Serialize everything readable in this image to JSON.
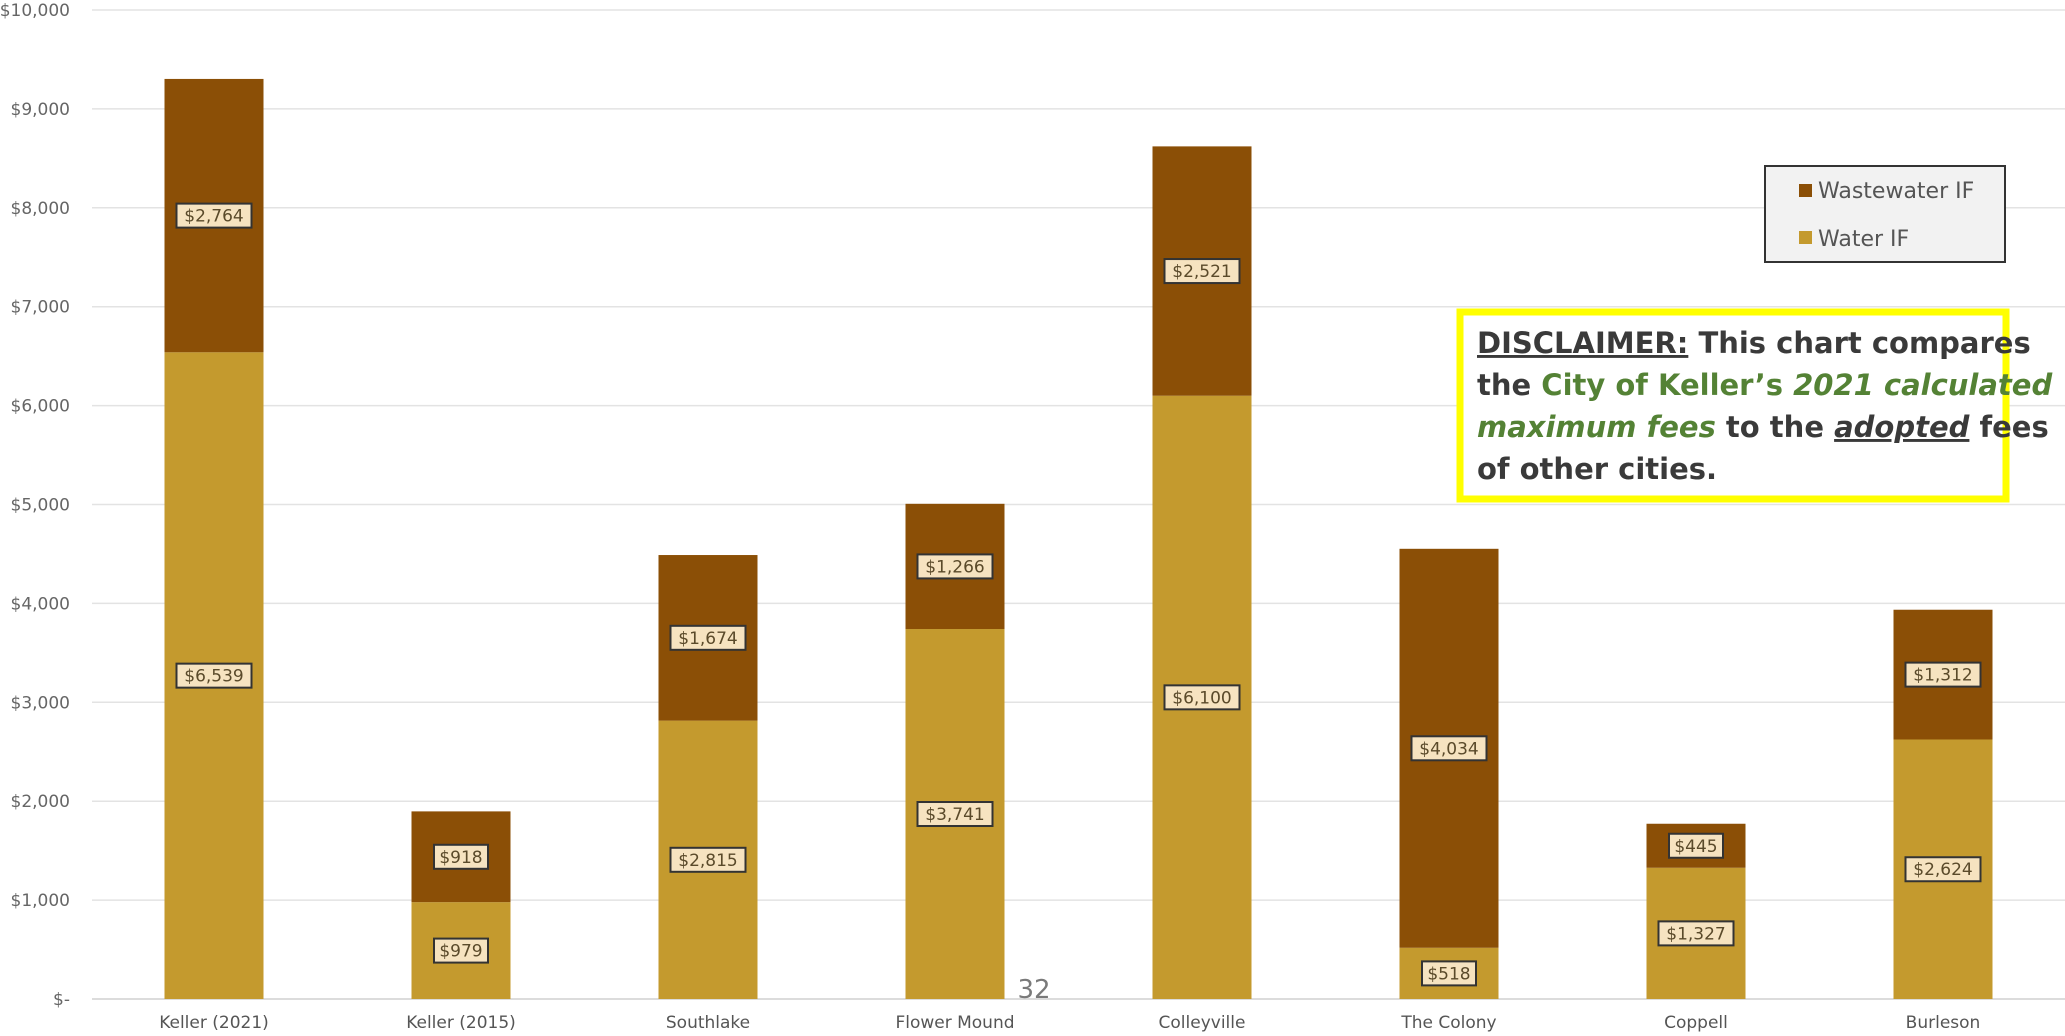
{
  "chart_data": {
    "type": "bar",
    "stacked": true,
    "categories": [
      "Keller (2021)",
      "Keller (2015)",
      "Southlake",
      "Flower Mound",
      "Colleyville",
      "The Colony",
      "Coppell",
      "Burleson"
    ],
    "series": [
      {
        "name": "Water IF",
        "color": "#c49a2e",
        "values": [
          6539,
          979,
          2815,
          3741,
          6100,
          518,
          1327,
          2624
        ],
        "labels": [
          "$6,539",
          "$979",
          "$2,815",
          "$3,741",
          "$6,100",
          "$518",
          "$1,327",
          "$2,624"
        ]
      },
      {
        "name": "Wastewater IF",
        "color": "#8b4f06",
        "values": [
          2764,
          918,
          1674,
          1266,
          2521,
          4034,
          445,
          1312
        ],
        "labels": [
          "$2,764",
          "$918",
          "$1,674",
          "$1,266",
          "$2,521",
          "$4,034",
          "$445",
          "$1,312"
        ]
      }
    ],
    "y_ticks": [
      0,
      1000,
      2000,
      3000,
      4000,
      5000,
      6000,
      7000,
      8000,
      9000,
      10000
    ],
    "y_tick_labels": [
      "$-",
      "$1,000",
      "$2,000",
      "$3,000",
      "$4,000",
      "$5,000",
      "$6,000",
      "$7,000",
      "$8,000",
      "$9,000",
      "$10,000"
    ],
    "ylim": [
      0,
      10000
    ],
    "grid": true,
    "legend_position": "top-right"
  },
  "legend": {
    "items": [
      {
        "label": "Wastewater IF",
        "color": "#8b4f06"
      },
      {
        "label": "Water IF",
        "color": "#c49a2e"
      }
    ]
  },
  "disclaimer": {
    "heading": "DISCLAIMER:",
    "text1": " This chart compares",
    "text2a": "the ",
    "text2b": "City of Keller’s ",
    "text2c": "2021 calculated",
    "text3a": "maximum fees",
    "text3b": " to the ",
    "text3c": "adopted",
    "text3d": " fees",
    "text4": "of other cities."
  },
  "page_number": "32"
}
